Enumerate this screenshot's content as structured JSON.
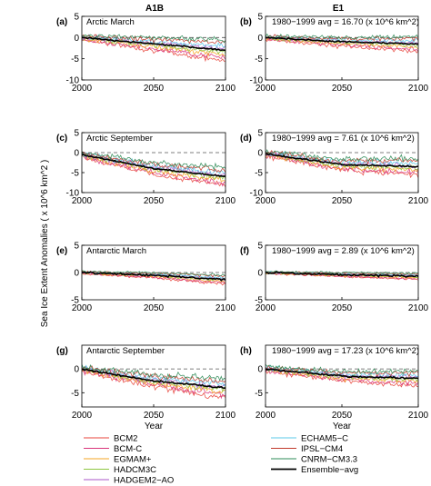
{
  "figure": {
    "col_titles": [
      "A1B",
      "E1"
    ],
    "ylabel": "Sea Ice Extent Anomalies",
    "ylabel_unit": "( x 10^6 km^2 )",
    "xlabel": "Year"
  },
  "chart_data": [
    {
      "type": "line",
      "panel": "(a)",
      "title": "Arctic March",
      "ylim": [
        -10,
        5
      ],
      "yticks": [
        5,
        0,
        -5,
        -10
      ],
      "xlim": [
        2000,
        2100
      ],
      "xticks": [
        2000,
        2050,
        2100
      ],
      "xlabel": "",
      "ensemble_avg": [
        [
          2000,
          0
        ],
        [
          2050,
          -1.5
        ],
        [
          2100,
          -3
        ]
      ],
      "spread": [
        1.5,
        3
      ]
    },
    {
      "type": "line",
      "panel": "(b)",
      "title": "",
      "annotation": "1980−1999 avg = 16.70 (x 10^6 km^2)",
      "ylim": [
        -10,
        5
      ],
      "yticks": [
        5,
        0,
        -5,
        -10
      ],
      "xlim": [
        2000,
        2100
      ],
      "xticks": [
        2000,
        2050,
        2100
      ],
      "xlabel": "",
      "ensemble_avg": [
        [
          2000,
          0
        ],
        [
          2050,
          -1
        ],
        [
          2100,
          -1.5
        ]
      ],
      "spread": [
        1.2,
        2
      ]
    },
    {
      "type": "line",
      "panel": "(c)",
      "title": "Arctic September",
      "ylim": [
        -10,
        5
      ],
      "yticks": [
        5,
        0,
        -5,
        -10
      ],
      "xlim": [
        2000,
        2100
      ],
      "xticks": [
        2000,
        2050,
        2100
      ],
      "xlabel": "",
      "ensemble_avg": [
        [
          2000,
          -0.5
        ],
        [
          2050,
          -4
        ],
        [
          2100,
          -6
        ]
      ],
      "spread": [
        1.8,
        2.5
      ]
    },
    {
      "type": "line",
      "panel": "(d)",
      "title": "",
      "annotation": "1980−1999 avg = 7.61 (x 10^6 km^2)",
      "ylim": [
        -10,
        5
      ],
      "yticks": [
        5,
        0,
        -5,
        -10
      ],
      "xlim": [
        2000,
        2100
      ],
      "xticks": [
        2000,
        2050,
        2100
      ],
      "xlabel": "",
      "ensemble_avg": [
        [
          2000,
          -0.3
        ],
        [
          2050,
          -3
        ],
        [
          2100,
          -3.5
        ]
      ],
      "spread": [
        1.8,
        2.2
      ]
    },
    {
      "type": "line",
      "panel": "(e)",
      "title": "Antarctic March",
      "ylim": [
        -5,
        5
      ],
      "yticks": [
        5,
        0,
        -5
      ],
      "xlim": [
        2000,
        2100
      ],
      "xticks": [
        2000,
        2050,
        2100
      ],
      "xlabel": "",
      "ensemble_avg": [
        [
          2000,
          0
        ],
        [
          2050,
          -0.5
        ],
        [
          2100,
          -1.3
        ]
      ],
      "spread": [
        0.6,
        0.9
      ]
    },
    {
      "type": "line",
      "panel": "(f)",
      "title": "",
      "annotation": "1980−1999 avg = 2.89 (x 10^6 km^2)",
      "ylim": [
        -5,
        5
      ],
      "yticks": [
        5,
        0,
        -5
      ],
      "xlim": [
        2000,
        2100
      ],
      "xticks": [
        2000,
        2050,
        2100
      ],
      "xlabel": "",
      "ensemble_avg": [
        [
          2000,
          0
        ],
        [
          2050,
          -0.4
        ],
        [
          2100,
          -0.7
        ]
      ],
      "spread": [
        0.5,
        0.6
      ]
    },
    {
      "type": "line",
      "panel": "(g)",
      "title": "Antarctic September",
      "ylim": [
        -8,
        5
      ],
      "yticks": [
        0,
        -5
      ],
      "xlim": [
        2000,
        2100
      ],
      "xticks": [
        2000,
        2050,
        2100
      ],
      "xlabel": "Year",
      "ensemble_avg": [
        [
          2000,
          0
        ],
        [
          2050,
          -2.5
        ],
        [
          2100,
          -4
        ]
      ],
      "spread": [
        1.6,
        2.2
      ]
    },
    {
      "type": "line",
      "panel": "(h)",
      "title": "",
      "annotation": "1980−1999 avg = 17.23 (x 10^6 km^2)",
      "ylim": [
        -8,
        5
      ],
      "yticks": [
        0,
        -5
      ],
      "xlim": [
        2000,
        2100
      ],
      "xticks": [
        2000,
        2050,
        2100
      ],
      "xlabel": "Year",
      "ensemble_avg": [
        [
          2000,
          0
        ],
        [
          2050,
          -1.5
        ],
        [
          2100,
          -2
        ]
      ],
      "spread": [
        1.4,
        1.6
      ]
    }
  ],
  "legend": [
    {
      "name": "BCM2",
      "color": "#e8463c"
    },
    {
      "name": "BCM-C",
      "color": "#d9337a"
    },
    {
      "name": "EGMAM+",
      "color": "#f5a623"
    },
    {
      "name": "HADCM3C",
      "color": "#8cc63f"
    },
    {
      "name": "HADGEM2−AO",
      "color": "#a855c9"
    },
    {
      "name": "ECHAM5−C",
      "color": "#5bc8e8"
    },
    {
      "name": "IPSL−CM4",
      "color": "#c0392b"
    },
    {
      "name": "CNRM−CM3.3",
      "color": "#2e8b57"
    },
    {
      "name": "Ensemble−avg",
      "color": "#000000"
    }
  ]
}
